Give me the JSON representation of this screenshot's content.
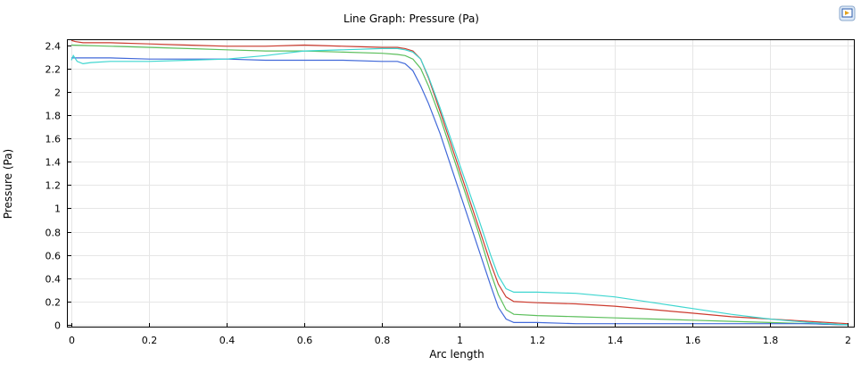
{
  "chart_data": {
    "type": "line",
    "title": "Line Graph: Pressure (Pa)",
    "xlabel": "Arc length",
    "ylabel": "Pressure (Pa)",
    "xlim": [
      0,
      2
    ],
    "ylim": [
      0,
      2.45
    ],
    "xticks": [
      0,
      0.2,
      0.4,
      0.6,
      0.8,
      1,
      1.2,
      1.4,
      1.6,
      1.8,
      2
    ],
    "xtick_labels": [
      "0",
      "0.2",
      "0.4",
      "0.6",
      "0.8",
      "1",
      "1.2",
      "1.4",
      "1.6",
      "1.8",
      "2"
    ],
    "yticks": [
      0,
      0.2,
      0.4,
      0.6,
      0.8,
      1,
      1.2,
      1.4,
      1.6,
      1.8,
      2,
      2.2,
      2.4
    ],
    "ytick_labels": [
      "0",
      "0.2",
      "0.4",
      "0.6",
      "0.8",
      "1",
      "1.2",
      "1.4",
      "1.6",
      "1.8",
      "2",
      "2.2",
      "2.4"
    ],
    "grid": true,
    "series": [
      {
        "color": "#cc3b2f",
        "x": [
          0,
          0.01,
          0.03,
          0.06,
          0.1,
          0.2,
          0.3,
          0.4,
          0.5,
          0.6,
          0.7,
          0.8,
          0.84,
          0.86,
          0.88,
          0.9,
          0.92,
          0.95,
          1.0,
          1.05,
          1.08,
          1.1,
          1.12,
          1.14,
          1.2,
          1.3,
          1.4,
          1.5,
          1.6,
          1.7,
          1.8,
          1.9,
          2.0
        ],
        "y": [
          2.44,
          2.43,
          2.42,
          2.42,
          2.42,
          2.41,
          2.4,
          2.39,
          2.39,
          2.4,
          2.39,
          2.38,
          2.38,
          2.37,
          2.35,
          2.28,
          2.12,
          1.83,
          1.33,
          0.83,
          0.53,
          0.35,
          0.24,
          0.2,
          0.19,
          0.18,
          0.16,
          0.13,
          0.1,
          0.07,
          0.05,
          0.03,
          0.01
        ]
      },
      {
        "color": "#5cbf5c",
        "x": [
          0,
          0.1,
          0.2,
          0.3,
          0.4,
          0.5,
          0.6,
          0.7,
          0.8,
          0.84,
          0.86,
          0.88,
          0.9,
          0.92,
          0.95,
          1.0,
          1.05,
          1.08,
          1.1,
          1.12,
          1.14,
          1.2,
          1.3,
          1.4,
          1.5,
          1.6,
          1.7,
          1.8,
          1.9,
          2.0
        ],
        "y": [
          2.4,
          2.39,
          2.38,
          2.37,
          2.36,
          2.35,
          2.35,
          2.34,
          2.33,
          2.32,
          2.31,
          2.28,
          2.2,
          2.05,
          1.78,
          1.28,
          0.78,
          0.45,
          0.26,
          0.13,
          0.09,
          0.08,
          0.07,
          0.06,
          0.05,
          0.04,
          0.03,
          0.02,
          0.01,
          0.0
        ]
      },
      {
        "color": "#4169d9",
        "x": [
          0,
          0.1,
          0.2,
          0.3,
          0.4,
          0.5,
          0.6,
          0.7,
          0.8,
          0.84,
          0.86,
          0.88,
          0.9,
          0.92,
          0.95,
          1.0,
          1.05,
          1.08,
          1.1,
          1.12,
          1.14,
          1.2,
          1.3,
          1.4,
          1.5,
          1.6,
          1.7,
          1.8,
          1.9,
          2.0
        ],
        "y": [
          2.29,
          2.29,
          2.28,
          2.28,
          2.28,
          2.27,
          2.27,
          2.27,
          2.26,
          2.26,
          2.24,
          2.18,
          2.05,
          1.9,
          1.64,
          1.14,
          0.64,
          0.34,
          0.15,
          0.05,
          0.02,
          0.02,
          0.01,
          0.01,
          0.01,
          0.01,
          0.01,
          0.01,
          0.01,
          0.0
        ]
      },
      {
        "color": "#3fd6d0",
        "x": [
          0,
          0.005,
          0.015,
          0.03,
          0.05,
          0.1,
          0.2,
          0.3,
          0.4,
          0.5,
          0.55,
          0.6,
          0.7,
          0.8,
          0.84,
          0.86,
          0.88,
          0.9,
          0.92,
          0.95,
          1.0,
          1.05,
          1.08,
          1.1,
          1.12,
          1.14,
          1.2,
          1.3,
          1.4,
          1.5,
          1.6,
          1.7,
          1.8,
          1.9,
          2.0
        ],
        "y": [
          2.27,
          2.31,
          2.26,
          2.24,
          2.25,
          2.26,
          2.26,
          2.27,
          2.28,
          2.31,
          2.33,
          2.35,
          2.36,
          2.37,
          2.37,
          2.36,
          2.34,
          2.28,
          2.13,
          1.86,
          1.38,
          0.9,
          0.6,
          0.42,
          0.31,
          0.28,
          0.28,
          0.27,
          0.24,
          0.19,
          0.14,
          0.09,
          0.05,
          0.02,
          0.0
        ]
      }
    ]
  },
  "toolbar": {
    "export_icon": "export-image-icon"
  }
}
